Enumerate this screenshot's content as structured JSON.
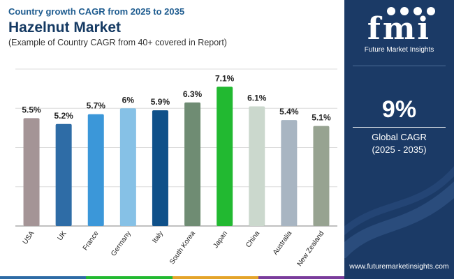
{
  "header": {
    "subtitle": "Country growth CAGR from 2025 to 2035",
    "title": "Hazelnut Market",
    "note": "(Example of Country CAGR from 40+ covered in Report)"
  },
  "chart_data": {
    "type": "bar",
    "categories": [
      "USA",
      "UK",
      "France",
      "Germany",
      "Italy",
      "South Korea",
      "Japan",
      "China",
      "Australia",
      "New Zealand"
    ],
    "values": [
      5.5,
      5.2,
      5.7,
      6.0,
      5.9,
      6.3,
      7.1,
      6.1,
      5.4,
      5.1
    ],
    "labels": [
      "5.5%",
      "5.2%",
      "5.7%",
      "6%",
      "5.9%",
      "6.3%",
      "7.1%",
      "6.1%",
      "5.4%",
      "5.1%"
    ],
    "colors": [
      "#a49496",
      "#2e6ca6",
      "#3b97d9",
      "#86c1e6",
      "#0f5089",
      "#6f8c73",
      "#22b931",
      "#cbd8cd",
      "#a8b5c2",
      "#97a391"
    ],
    "ylim": [
      0,
      8
    ],
    "grid": true,
    "legend": "none"
  },
  "sidebar": {
    "logo_text": "fmi",
    "logo_tagline": "Future Market Insights",
    "global_cagr_value": "9%",
    "global_cagr_label": "Global CAGR",
    "global_cagr_period": "(2025 - 2035)",
    "website": "www.futuremarketinsights.com"
  },
  "bottom_bar_colors": [
    "#2e6ca6",
    "#22b931",
    "#e4a42b",
    "#7a3d9c"
  ]
}
